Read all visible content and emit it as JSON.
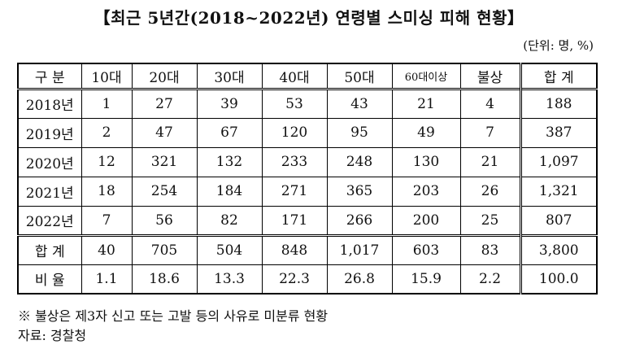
{
  "title": "【최근 5년간(2018~2022년) 연령별 스미싱 피해 현황】",
  "unit": "(단위: 명, %)",
  "headers": [
    "구  분",
    "10대",
    "20대",
    "30대",
    "40대",
    "50대",
    "60대이상",
    "불상",
    "합  계"
  ],
  "rows": [
    {
      "label": "2018년",
      "values": [
        "1",
        "27",
        "39",
        "53",
        "43",
        "21",
        "4",
        "188"
      ]
    },
    {
      "label": "2019년",
      "values": [
        "2",
        "47",
        "67",
        "120",
        "95",
        "49",
        "7",
        "387"
      ]
    },
    {
      "label": "2020년",
      "values": [
        "12",
        "321",
        "132",
        "233",
        "248",
        "130",
        "21",
        "1,097"
      ]
    },
    {
      "label": "2021년",
      "values": [
        "18",
        "254",
        "184",
        "271",
        "365",
        "203",
        "26",
        "1,321"
      ]
    },
    {
      "label": "2022년",
      "values": [
        "7",
        "56",
        "82",
        "171",
        "266",
        "200",
        "25",
        "807"
      ]
    }
  ],
  "sum_row": {
    "label": "합  계",
    "values": [
      "40",
      "705",
      "504",
      "848",
      "1,017",
      "603",
      "83",
      "3,800"
    ]
  },
  "ratio_row": {
    "label": "비  율",
    "values": [
      "1.1",
      "18.6",
      "13.3",
      "22.3",
      "26.8",
      "15.9",
      "2.2",
      "100.0"
    ]
  },
  "note": "※ 불상은 제3자 신고 또는 고발 등의 사유로 미분류 현황",
  "source": "자료: 경찰청"
}
